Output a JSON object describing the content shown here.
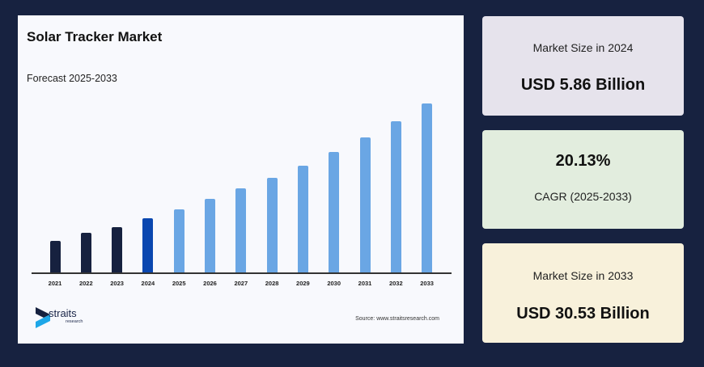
{
  "chart_panel": {
    "title": "Solar Tracker Market",
    "subtitle": "Forecast 2025-2033",
    "source": "Source: www.straitsresearch.com",
    "logo": {
      "name": "straits",
      "sub": "research"
    }
  },
  "cards": [
    {
      "label": "Market Size in 2024",
      "value": "USD 5.86 Billion",
      "bg": "#e6e3ec"
    },
    {
      "value": "20.13%",
      "label": "CAGR (2025-2033)",
      "bg": "#e2edde"
    },
    {
      "label": "Market Size in 2033",
      "value": "USD 30.53 Billion",
      "bg": "#f8f1db"
    }
  ],
  "colors": {
    "historical": "#16213f",
    "base_year": "#0a47b0",
    "forecast": "#6aa6e4",
    "background": "#172240",
    "panel": "#f8f9fd"
  },
  "chart_data": {
    "type": "bar",
    "title": "Solar Tracker Market",
    "subtitle": "Forecast 2025-2033",
    "xlabel": "",
    "ylabel": "",
    "grid": false,
    "legend": "none",
    "categories": [
      "2021",
      "2022",
      "2023",
      "2024",
      "2025",
      "2026",
      "2027",
      "2028",
      "2029",
      "2030",
      "2031",
      "2032",
      "2033"
    ],
    "values": [
      4.0,
      4.6,
      5.1,
      5.86,
      7.04,
      8.46,
      10.16,
      12.21,
      14.67,
      17.62,
      21.17,
      25.43,
      30.53
    ],
    "units": "USD Billion",
    "cagr": "20.13%",
    "bar_pixel_heights": [
      39,
      49,
      56,
      67,
      78,
      91,
      104,
      117,
      132,
      149,
      167,
      187,
      209
    ],
    "bar_roles": [
      "historical",
      "historical",
      "historical",
      "base_year",
      "forecast",
      "forecast",
      "forecast",
      "forecast",
      "forecast",
      "forecast",
      "forecast",
      "forecast",
      "forecast"
    ],
    "annotations": [
      "Market Size in 2024: USD 5.86 Billion",
      "CAGR (2025-2033): 20.13%",
      "Market Size in 2033: USD 30.53 Billion"
    ]
  }
}
